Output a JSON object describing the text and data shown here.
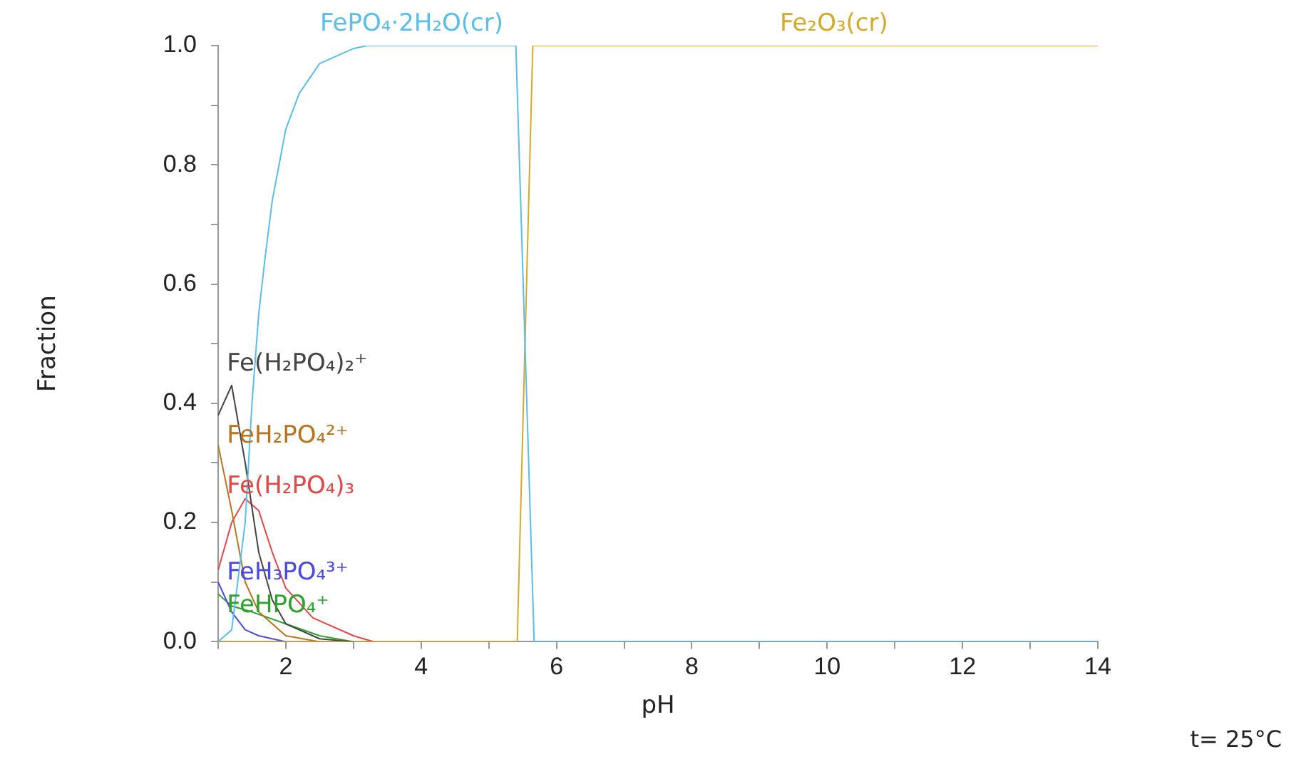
{
  "chart_data": {
    "type": "line",
    "xlabel": "pH",
    "ylabel": "Fraction",
    "annotations": [
      "t= 25°C"
    ],
    "xlim": [
      1,
      14
    ],
    "xticks": [
      {
        "value": 1,
        "label": null
      },
      2,
      {
        "value": 3,
        "label": null
      },
      4,
      {
        "value": 5,
        "label": null
      },
      6,
      {
        "value": 7,
        "label": null
      },
      8,
      {
        "value": 9,
        "label": null
      },
      10,
      {
        "value": 11,
        "label": null
      },
      12,
      {
        "value": 13,
        "label": null
      },
      14
    ],
    "ylim": [
      0,
      1
    ],
    "yticks": [
      {
        "value": 0,
        "label": "0.0"
      },
      {
        "value": 0.1,
        "label": null
      },
      {
        "value": 0.2,
        "label": "0.2"
      },
      {
        "value": 0.3,
        "label": null
      },
      {
        "value": 0.4,
        "label": "0.4"
      },
      {
        "value": 0.5,
        "label": null
      },
      {
        "value": 0.6,
        "label": "0.6"
      },
      {
        "value": 0.7,
        "label": null
      },
      {
        "value": 0.8,
        "label": "0.8"
      },
      {
        "value": 0.9,
        "label": null
      },
      {
        "value": 1,
        "label": "1.0"
      }
    ],
    "grid": false,
    "legend": false,
    "marker": "none",
    "line_style": "solid",
    "series": [
      {
        "name": "FePO₄·2H₂O(cr)",
        "color": "#5bbde8",
        "x": [
          1,
          1.2,
          1.4,
          1.5,
          1.6,
          1.7,
          1.8,
          1.9,
          2,
          2.2,
          2.5,
          3,
          3.2,
          5.4,
          5.67,
          14
        ],
        "values": [
          0,
          0.02,
          0.2,
          0.4,
          0.55,
          0.65,
          0.74,
          0.8,
          0.86,
          0.92,
          0.97,
          0.995,
          1,
          1,
          0,
          0
        ]
      },
      {
        "name": "Fe₂O₃(cr)",
        "color": "#d4aa2a",
        "x": [
          1,
          5.42,
          5.65,
          14
        ],
        "values": [
          0,
          0,
          1,
          1
        ]
      },
      {
        "name": "Fe(H₂PO₄)₂⁺",
        "color": "#444444",
        "x": [
          1,
          1.2,
          1.4,
          1.6,
          1.8,
          2,
          2.5,
          3
        ],
        "values": [
          0.38,
          0.43,
          0.3,
          0.15,
          0.07,
          0.03,
          0.005,
          0
        ]
      },
      {
        "name": "FeH₂PO₄²⁺",
        "color": "#b8731f",
        "x": [
          1,
          1.2,
          1.4,
          1.6,
          2,
          2.5
        ],
        "values": [
          0.33,
          0.22,
          0.1,
          0.05,
          0.01,
          0
        ]
      },
      {
        "name": "Fe(H₂PO₄)₃",
        "color": "#e04848",
        "x": [
          1,
          1.2,
          1.4,
          1.6,
          1.8,
          2,
          2.4,
          3,
          3.3
        ],
        "values": [
          0.12,
          0.2,
          0.24,
          0.22,
          0.15,
          0.09,
          0.04,
          0.01,
          0
        ]
      },
      {
        "name": "FeH₃PO₄³⁺",
        "color": "#4a4ae0",
        "x": [
          1,
          1.2,
          1.4,
          1.6,
          2
        ],
        "values": [
          0.1,
          0.05,
          0.02,
          0.01,
          0
        ]
      },
      {
        "name": "FeHPO₄⁺",
        "color": "#30a030",
        "x": [
          1,
          1.2,
          1.5,
          2,
          2.5,
          3
        ],
        "values": [
          0.08,
          0.06,
          0.05,
          0.03,
          0.01,
          0
        ]
      }
    ]
  }
}
